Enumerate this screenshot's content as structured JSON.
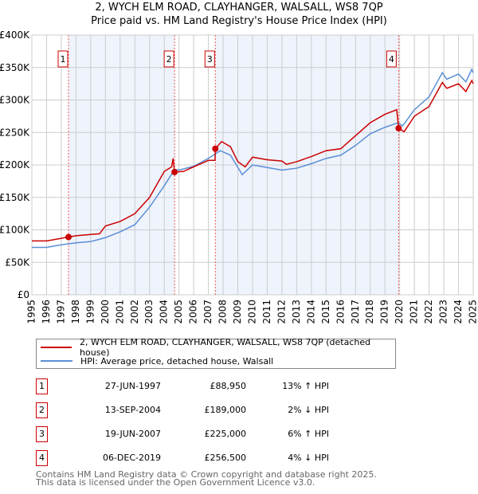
{
  "chart_data": {
    "type": "line",
    "title": "2, WYCH ELM ROAD, CLAYHANGER, WALSALL, WS8 7QP",
    "subtitle": "Price paid vs. HM Land Registry's House Price Index (HPI)",
    "xlim": [
      1995,
      2025
    ],
    "ylim": [
      0,
      400000
    ],
    "yticks": [
      {
        "v": 0,
        "label": "£0"
      },
      {
        "v": 50000,
        "label": "£50K"
      },
      {
        "v": 100000,
        "label": "£100K"
      },
      {
        "v": 150000,
        "label": "£150K"
      },
      {
        "v": 200000,
        "label": "£200K"
      },
      {
        "v": 250000,
        "label": "£250K"
      },
      {
        "v": 300000,
        "label": "£300K"
      },
      {
        "v": 350000,
        "label": "£350K"
      },
      {
        "v": 400000,
        "label": "£400K"
      }
    ],
    "xticks": [
      "1995",
      "1996",
      "1997",
      "1998",
      "1999",
      "2000",
      "2001",
      "2002",
      "2003",
      "2004",
      "2005",
      "2006",
      "2007",
      "2008",
      "2009",
      "2010",
      "2011",
      "2012",
      "2013",
      "2014",
      "2015",
      "2016",
      "2017",
      "2018",
      "2019",
      "2020",
      "2021",
      "2022",
      "2023",
      "2024",
      "2025"
    ],
    "grid": true,
    "series": [
      {
        "name": "2, WYCH ELM ROAD, CLAYHANGER, WALSALL, WS8 7QP (detached house)",
        "color": "#cc0000",
        "x": [
          1995,
          1996,
          1997,
          1997.49,
          1998,
          1999,
          1999.6,
          2000,
          2001,
          2002,
          2003,
          2004,
          2004.5,
          2004.6,
          2004.7,
          2005.3,
          2006,
          2007,
          2007.45,
          2007.47,
          2007.9,
          2008.5,
          2009,
          2009.5,
          2010,
          2011,
          2012,
          2012.3,
          2013,
          2014,
          2015,
          2016,
          2017,
          2018,
          2019,
          2019.8,
          2019.93,
          2020.3,
          2021,
          2022,
          2022.9,
          2023.2,
          2024,
          2024.5,
          2024.9,
          2025
        ],
        "y": [
          83000,
          83000,
          87000,
          88950,
          91000,
          93000,
          94000,
          106000,
          113000,
          125000,
          150000,
          190000,
          197000,
          210000,
          189000,
          190000,
          197000,
          207000,
          207000,
          225000,
          236000,
          228000,
          205000,
          197000,
          212000,
          208000,
          206000,
          201000,
          205000,
          213000,
          222000,
          225000,
          245000,
          265000,
          278000,
          285000,
          256500,
          251000,
          275000,
          290000,
          327000,
          318000,
          325000,
          313000,
          330000,
          325000
        ]
      },
      {
        "name": "HPI: Average price, detached house, Walsall",
        "color": "#5b8fd4",
        "x": [
          1995,
          1996,
          1997,
          1998,
          1999,
          2000,
          2001,
          2002,
          2003,
          2004,
          2004.7,
          2005,
          2006,
          2007,
          2007.8,
          2008.5,
          2009.3,
          2010,
          2011,
          2012,
          2013,
          2014,
          2015,
          2016,
          2017,
          2018,
          2019,
          2019.9,
          2020.2,
          2021,
          2022,
          2022.9,
          2023.2,
          2024,
          2024.5,
          2024.9,
          2025
        ],
        "y": [
          73000,
          73000,
          77000,
          80000,
          82000,
          88000,
          97000,
          108000,
          135000,
          168000,
          193000,
          192000,
          198000,
          210000,
          222000,
          215000,
          185000,
          200000,
          196000,
          192000,
          195000,
          202000,
          210000,
          215000,
          230000,
          248000,
          258000,
          265000,
          260000,
          285000,
          305000,
          342000,
          332000,
          340000,
          328000,
          347000,
          342000
        ]
      }
    ],
    "sales": [
      {
        "label": "1",
        "x": 1997.49,
        "price": 88950,
        "date": "27-JUN-1997",
        "price_text": "£88,950",
        "hpi": "13% ↑ HPI"
      },
      {
        "label": "2",
        "x": 2004.7,
        "price": 189000,
        "date": "13-SEP-2004",
        "price_text": "£189,000",
        "hpi": "2% ↓ HPI"
      },
      {
        "label": "3",
        "x": 2007.47,
        "price": 225000,
        "date": "19-JUN-2007",
        "price_text": "£225,000",
        "hpi": "6% ↑ HPI"
      },
      {
        "label": "4",
        "x": 2019.93,
        "price": 256500,
        "date": "06-DEC-2019",
        "price_text": "£256,500",
        "hpi": "4% ↓ HPI"
      }
    ],
    "footer": [
      "Contains HM Land Registry data © Crown copyright and database right 2025.",
      "This data is licensed under the Open Government Licence v3.0."
    ]
  }
}
